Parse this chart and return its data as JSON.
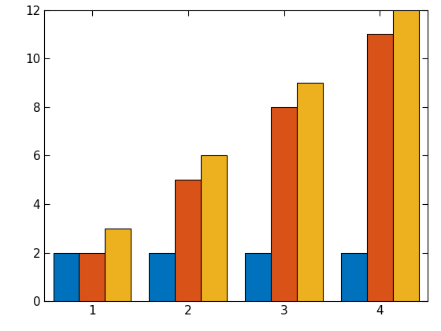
{
  "categories": [
    1,
    2,
    3,
    4
  ],
  "series": [
    {
      "label": "blue",
      "values": [
        2,
        2,
        2,
        2
      ],
      "color": "#0072BD"
    },
    {
      "label": "red",
      "values": [
        2,
        5,
        8,
        11
      ],
      "color": "#D95319"
    },
    {
      "label": "yellow",
      "values": [
        3,
        6,
        9,
        12
      ],
      "color": "#EDB120"
    }
  ],
  "ylim": [
    0,
    12
  ],
  "yticks": [
    0,
    2,
    4,
    6,
    8,
    10,
    12
  ],
  "xticks": [
    1,
    2,
    3,
    4
  ],
  "background_color": "#ffffff",
  "bar_width": 0.27,
  "xlim": [
    0.5,
    4.5
  ],
  "figsize": [
    5.6,
    4.2
  ],
  "dpi": 100
}
